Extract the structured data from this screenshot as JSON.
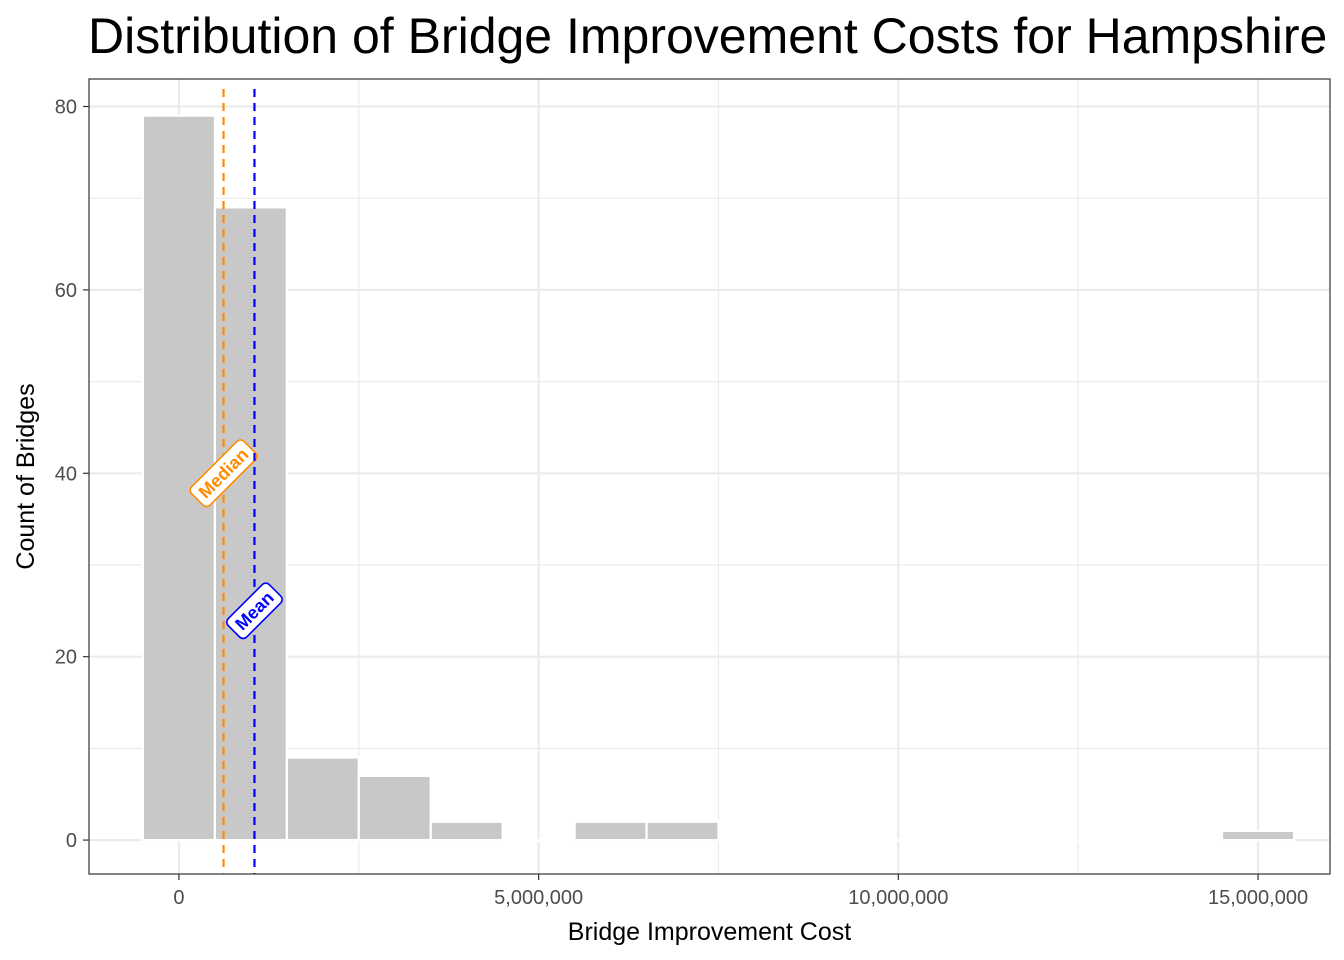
{
  "chart_data": {
    "type": "bar",
    "title": "Distribution of Bridge Improvement Costs for Hampshire",
    "xlabel": "Bridge Improvement Cost",
    "ylabel": "Count of Bridges",
    "bin_width": 1000000,
    "bins": [
      {
        "center": 0,
        "count": 79
      },
      {
        "center": 1000000,
        "count": 69
      },
      {
        "center": 2000000,
        "count": 9
      },
      {
        "center": 3000000,
        "count": 7
      },
      {
        "center": 4000000,
        "count": 2
      },
      {
        "center": 5000000,
        "count": 0
      },
      {
        "center": 6000000,
        "count": 2
      },
      {
        "center": 7000000,
        "count": 2
      },
      {
        "center": 8000000,
        "count": 0
      },
      {
        "center": 9000000,
        "count": 0
      },
      {
        "center": 10000000,
        "count": 0
      },
      {
        "center": 11000000,
        "count": 0
      },
      {
        "center": 12000000,
        "count": 0
      },
      {
        "center": 13000000,
        "count": 0
      },
      {
        "center": 14000000,
        "count": 0
      },
      {
        "center": 15000000,
        "count": 1
      }
    ],
    "xlim": [
      -1250000,
      16000000
    ],
    "ylim": [
      -3.7,
      83
    ],
    "x_ticks": [
      {
        "value": 0,
        "label": "0"
      },
      {
        "value": 5000000,
        "label": "5,000,000"
      },
      {
        "value": 10000000,
        "label": "10,000,000"
      },
      {
        "value": 15000000,
        "label": "15,000,000"
      }
    ],
    "y_ticks": [
      {
        "value": 0,
        "label": "0"
      },
      {
        "value": 20,
        "label": "20"
      },
      {
        "value": 40,
        "label": "40"
      },
      {
        "value": 60,
        "label": "60"
      },
      {
        "value": 80,
        "label": "80"
      }
    ],
    "reference_lines": [
      {
        "name": "Median",
        "value": 620000,
        "label_y": 40,
        "color": "#ff8c00"
      },
      {
        "name": "Mean",
        "value": 1050000,
        "label_y": 25,
        "color": "#0000ff"
      }
    ],
    "bar_color": "#c8c8c8",
    "grid": true,
    "legend": "none"
  }
}
